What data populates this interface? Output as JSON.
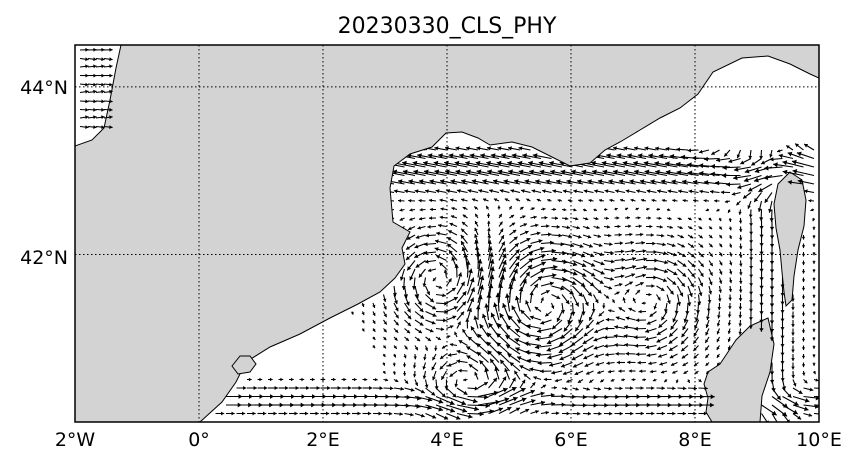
{
  "map": {
    "title": "20230330_CLS_PHY",
    "lon_ticks": [
      "2°W",
      "0°",
      "2°E",
      "4°E",
      "6°E",
      "8°E",
      "10°E"
    ],
    "lat_ticks": [
      "44°N",
      "42°N"
    ],
    "lon_range": [
      -2,
      10
    ],
    "lat_range": [
      40.0,
      44.5
    ],
    "lon_grid": [
      -2,
      0,
      2,
      4,
      6,
      8,
      10
    ],
    "lat_grid": [
      42,
      44
    ],
    "grid": "dotted",
    "layers": {
      "land_color": "#d3d3d3",
      "sea_color": "#ffffff",
      "arrow_color": "#000000",
      "frame_color": "#000000"
    },
    "content": "surface current velocity vectors (arrows) over the sea"
  }
}
